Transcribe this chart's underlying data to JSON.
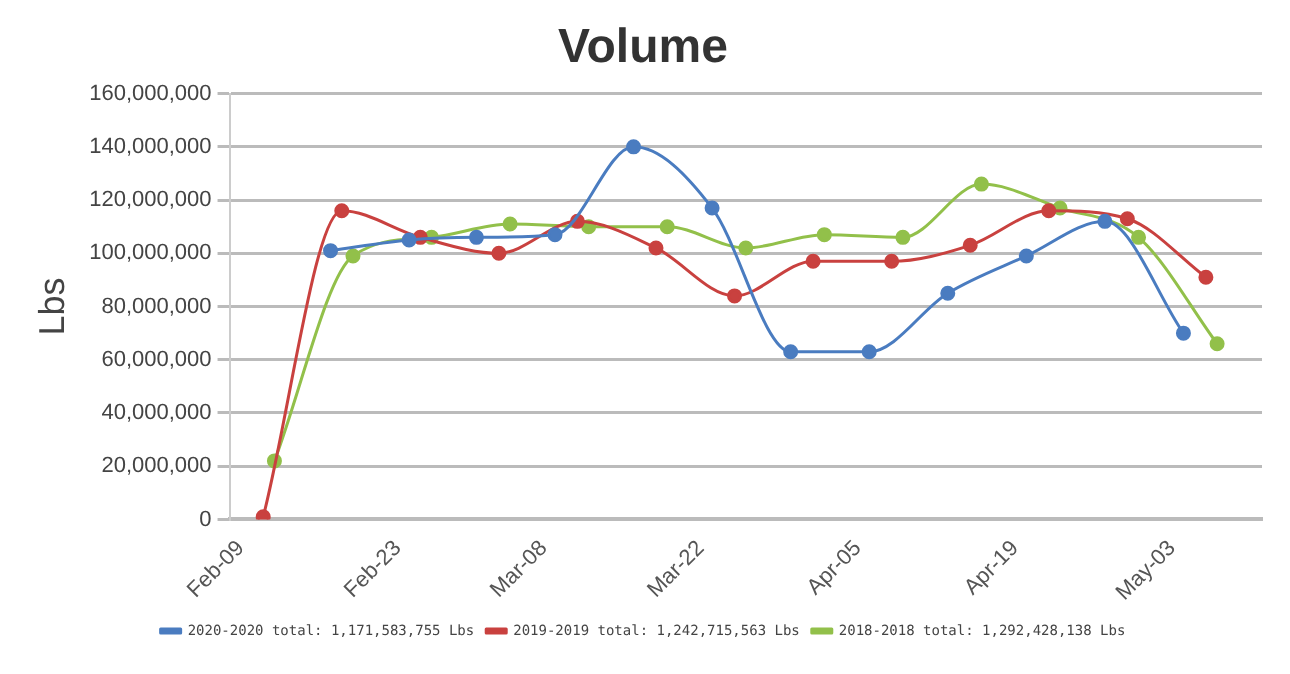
{
  "chart_data": {
    "type": "line",
    "title": "Volume",
    "ylabel": "Lbs",
    "xlim": [
      "--02-08",
      "--05-11"
    ],
    "xticks": [
      {
        "value": "--02-09",
        "label": "Feb-09"
      },
      {
        "value": "--02-23",
        "label": "Feb-23"
      },
      {
        "value": "--03-08",
        "label": "Mar-08"
      },
      {
        "value": "--03-22",
        "label": "Mar-22"
      },
      {
        "value": "--04-05",
        "label": "Apr-05"
      },
      {
        "value": "--04-19",
        "label": "Apr-19"
      },
      {
        "value": "--05-03",
        "label": "May-03"
      }
    ],
    "ylim": [
      0,
      160000000
    ],
    "yticks": [
      {
        "value": 0,
        "label": "0"
      },
      {
        "value": 20000000,
        "label": "20,000,000"
      },
      {
        "value": 40000000,
        "label": "40,000,000"
      },
      {
        "value": 60000000,
        "label": "60,000,000"
      },
      {
        "value": 80000000,
        "label": "80,000,000"
      },
      {
        "value": 100000000,
        "label": "100,000,000"
      },
      {
        "value": 120000000,
        "label": "120,000,000"
      },
      {
        "value": 140000000,
        "label": "140,000,000"
      },
      {
        "value": 160000000,
        "label": "160,000,000"
      }
    ],
    "grid": "y",
    "legend": "bottom",
    "marker": "circle",
    "line_style": "solid",
    "series": [
      {
        "name": "2020-2020 total: 1,171,583,755 Lbs",
        "color": "#4a7cc0",
        "x": [
          "--02-17",
          "--02-24",
          "--03-02",
          "--03-09",
          "--03-16",
          "--03-23",
          "--03-30",
          "--04-06",
          "--04-13",
          "--04-20",
          "--04-27",
          "--05-04"
        ],
        "values": [
          101000000,
          105000000,
          106000000,
          107000000,
          140000000,
          117000000,
          63000000,
          63000000,
          85000000,
          99000000,
          112000000,
          70000000
        ]
      },
      {
        "name": "2019-2019 total: 1,242,715,563 Lbs",
        "color": "#c9413f",
        "x": [
          "--02-11",
          "--02-18",
          "--02-25",
          "--03-04",
          "--03-11",
          "--03-18",
          "--03-25",
          "--04-01",
          "--04-08",
          "--04-15",
          "--04-22",
          "--04-29",
          "--05-06"
        ],
        "values": [
          1000000,
          116000000,
          106000000,
          100000000,
          112000000,
          102000000,
          84000000,
          97000000,
          97000000,
          103000000,
          116000000,
          113000000,
          91000000
        ]
      },
      {
        "name": "2018-2018 total: 1,292,428,138 Lbs",
        "color": "#92c04a",
        "x": [
          "--02-12",
          "--02-19",
          "--02-26",
          "--03-05",
          "--03-12",
          "--03-19",
          "--03-26",
          "--04-02",
          "--04-09",
          "--04-16",
          "--04-23",
          "--04-30",
          "--05-07"
        ],
        "values": [
          22000000,
          99000000,
          106000000,
          111000000,
          110000000,
          110000000,
          102000000,
          107000000,
          106000000,
          126000000,
          117000000,
          106000000,
          66000000
        ]
      }
    ]
  }
}
